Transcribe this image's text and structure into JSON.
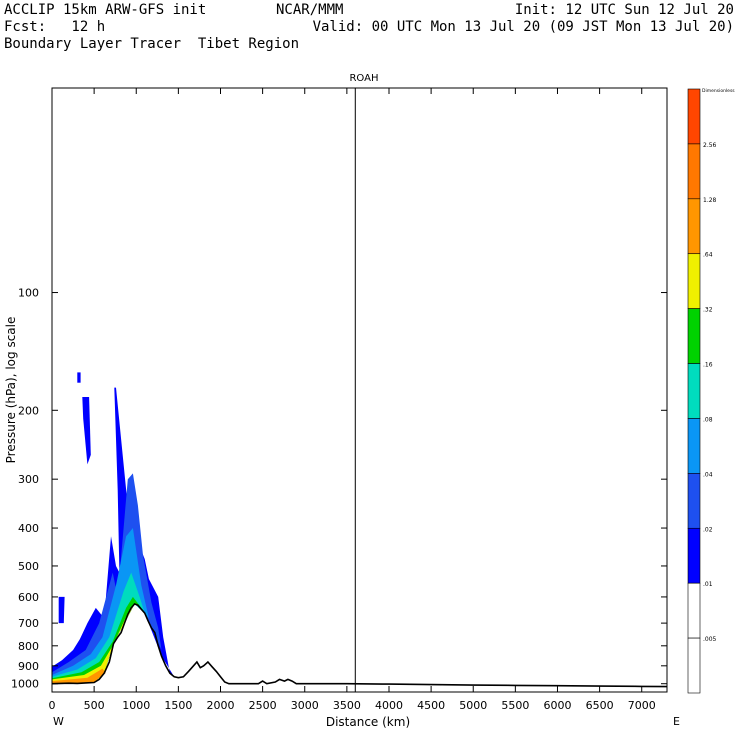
{
  "header": {
    "line1_left": "ACCLIP 15km ARW-GFS init",
    "line1_center": "NCAR/MMM",
    "line1_right": "Init: 12 UTC Sun 12 Jul 20",
    "line2_left": "Fcst:   12 h",
    "line2_right": "Valid: 00 UTC Mon 13 Jul 20 (09 JST Mon 13 Jul 20)",
    "line3_left": "Boundary Layer Tracer  Tibet Region"
  },
  "chart_data": {
    "type": "heatmap",
    "title": "ROAH",
    "xlabel": "Distance (km)",
    "ylabel": "Pressure (hPa), log scale",
    "x_ticks": [
      "0",
      "500",
      "1000",
      "1500",
      "2000",
      "2500",
      "3000",
      "3500",
      "4000",
      "4500",
      "5000",
      "5500",
      "6000",
      "6500",
      "7000"
    ],
    "x_tick_values": [
      0,
      500,
      1000,
      1500,
      2000,
      2500,
      3000,
      3500,
      4000,
      4500,
      5000,
      5500,
      6000,
      6500,
      7000
    ],
    "y_ticks": [
      "100",
      "200",
      "300",
      "400",
      "500",
      "600",
      "700",
      "800",
      "900",
      "1000"
    ],
    "y_tick_values": [
      100,
      200,
      300,
      400,
      500,
      600,
      700,
      800,
      900,
      1000
    ],
    "xlim": [
      0,
      7300
    ],
    "ylim": [
      1050,
      30
    ],
    "y_scale": "log",
    "left_end_label": "W",
    "right_end_label": "E",
    "marker_line_x_km": 3600,
    "colorbar": {
      "title": "Dimensionless",
      "labels": [
        ".005",
        ".01",
        ".02",
        ".04",
        ".08",
        ".16",
        ".32",
        ".64",
        "1.28",
        "2.56"
      ],
      "colors": [
        "#ffffff",
        "#ffffff",
        "#0000ff",
        "#1e50f0",
        "#0a96f5",
        "#00dcbe",
        "#00d200",
        "#f0f000",
        "#ff9600",
        "#ff7800",
        "#ff4600"
      ]
    },
    "terrain": [
      [
        0,
        1000
      ],
      [
        100,
        998
      ],
      [
        200,
        997
      ],
      [
        300,
        998
      ],
      [
        400,
        995
      ],
      [
        500,
        993
      ],
      [
        560,
        975
      ],
      [
        620,
        940
      ],
      [
        680,
        880
      ],
      [
        730,
        790
      ],
      [
        780,
        760
      ],
      [
        820,
        740
      ],
      [
        860,
        700
      ],
      [
        900,
        665
      ],
      [
        940,
        640
      ],
      [
        980,
        625
      ],
      [
        1020,
        630
      ],
      [
        1060,
        645
      ],
      [
        1100,
        660
      ],
      [
        1140,
        690
      ],
      [
        1180,
        720
      ],
      [
        1220,
        740
      ],
      [
        1260,
        800
      ],
      [
        1300,
        850
      ],
      [
        1350,
        900
      ],
      [
        1400,
        940
      ],
      [
        1450,
        960
      ],
      [
        1500,
        965
      ],
      [
        1560,
        960
      ],
      [
        1620,
        930
      ],
      [
        1680,
        900
      ],
      [
        1720,
        880
      ],
      [
        1760,
        910
      ],
      [
        1800,
        900
      ],
      [
        1850,
        880
      ],
      [
        1900,
        905
      ],
      [
        1950,
        930
      ],
      [
        2000,
        960
      ],
      [
        2050,
        990
      ],
      [
        2100,
        1000
      ],
      [
        2300,
        1000
      ],
      [
        2450,
        1000
      ],
      [
        2500,
        985
      ],
      [
        2550,
        1000
      ],
      [
        2650,
        990
      ],
      [
        2700,
        975
      ],
      [
        2760,
        985
      ],
      [
        2800,
        975
      ],
      [
        2850,
        985
      ],
      [
        2900,
        1000
      ],
      [
        3500,
        1000
      ],
      [
        4000,
        1002
      ],
      [
        4500,
        1005
      ],
      [
        5000,
        1008
      ],
      [
        5500,
        1010
      ],
      [
        6000,
        1012
      ],
      [
        6500,
        1014
      ],
      [
        7000,
        1016
      ],
      [
        7300,
        1017
      ]
    ],
    "tracer_regions": [
      {
        "level": ".01-.02",
        "color": "#0000ff",
        "polygon": [
          [
            0,
            905
          ],
          [
            120,
            870
          ],
          [
            250,
            820
          ],
          [
            330,
            770
          ],
          [
            420,
            700
          ],
          [
            520,
            640
          ],
          [
            620,
            680
          ],
          [
            700,
            420
          ],
          [
            760,
            500
          ],
          [
            800,
            520
          ],
          [
            780,
            320
          ],
          [
            740,
            175
          ],
          [
            760,
            175
          ],
          [
            860,
            290
          ],
          [
            940,
            430
          ],
          [
            1030,
            440
          ],
          [
            1100,
            480
          ],
          [
            1150,
            540
          ],
          [
            1260,
            600
          ],
          [
            1320,
            760
          ],
          [
            1400,
            940
          ],
          [
            1450,
            960
          ],
          [
            1300,
            850
          ],
          [
            1100,
            660
          ],
          [
            980,
            625
          ],
          [
            860,
            700
          ],
          [
            730,
            790
          ],
          [
            620,
            940
          ],
          [
            500,
            993
          ],
          [
            300,
            998
          ],
          [
            0,
            1000
          ]
        ]
      },
      {
        "level": ".01-.02",
        "color": "#0000ff",
        "polygon": [
          [
            360,
            185
          ],
          [
            440,
            185
          ],
          [
            460,
            260
          ],
          [
            420,
            275
          ],
          [
            370,
            210
          ]
        ]
      },
      {
        "level": ".01-.02",
        "color": "#0000ff",
        "polygon": [
          [
            300,
            160
          ],
          [
            340,
            160
          ],
          [
            340,
            170
          ],
          [
            300,
            170
          ]
        ]
      },
      {
        "level": ".01-.02",
        "color": "#0000ff",
        "polygon": [
          [
            80,
            600
          ],
          [
            150,
            600
          ],
          [
            140,
            700
          ],
          [
            80,
            700
          ]
        ]
      },
      {
        "level": ".02-.04",
        "color": "#1e50f0",
        "polygon": [
          [
            0,
            935
          ],
          [
            200,
            880
          ],
          [
            400,
            820
          ],
          [
            560,
            700
          ],
          [
            720,
            520
          ],
          [
            780,
            600
          ],
          [
            900,
            300
          ],
          [
            960,
            290
          ],
          [
            1020,
            350
          ],
          [
            1080,
            470
          ],
          [
            1180,
            620
          ],
          [
            1260,
            720
          ],
          [
            1300,
            820
          ],
          [
            1100,
            660
          ],
          [
            980,
            625
          ],
          [
            860,
            700
          ],
          [
            730,
            790
          ],
          [
            620,
            940
          ],
          [
            500,
            993
          ],
          [
            300,
            998
          ],
          [
            0,
            1000
          ]
        ]
      },
      {
        "level": ".04-.08",
        "color": "#0a96f5",
        "polygon": [
          [
            0,
            950
          ],
          [
            250,
            900
          ],
          [
            460,
            840
          ],
          [
            600,
            760
          ],
          [
            760,
            560
          ],
          [
            880,
            420
          ],
          [
            960,
            400
          ],
          [
            1060,
            560
          ],
          [
            1150,
            680
          ],
          [
            1100,
            660
          ],
          [
            980,
            625
          ],
          [
            860,
            700
          ],
          [
            730,
            790
          ],
          [
            620,
            940
          ],
          [
            500,
            993
          ],
          [
            300,
            998
          ],
          [
            0,
            1000
          ]
        ]
      },
      {
        "level": ".08-.16",
        "color": "#00dcbe",
        "polygon": [
          [
            0,
            960
          ],
          [
            300,
            920
          ],
          [
            520,
            860
          ],
          [
            680,
            760
          ],
          [
            850,
            580
          ],
          [
            940,
            520
          ],
          [
            1040,
            600
          ],
          [
            1100,
            660
          ],
          [
            980,
            625
          ],
          [
            860,
            700
          ],
          [
            730,
            790
          ],
          [
            620,
            940
          ],
          [
            500,
            993
          ],
          [
            300,
            998
          ],
          [
            0,
            1000
          ]
        ]
      },
      {
        "level": ".16-.32",
        "color": "#00d200",
        "polygon": [
          [
            0,
            968
          ],
          [
            350,
            935
          ],
          [
            560,
            880
          ],
          [
            720,
            780
          ],
          [
            880,
            640
          ],
          [
            960,
            600
          ],
          [
            1060,
            640
          ],
          [
            980,
            625
          ],
          [
            860,
            700
          ],
          [
            730,
            790
          ],
          [
            620,
            940
          ],
          [
            500,
            993
          ],
          [
            300,
            998
          ],
          [
            0,
            1000
          ]
        ]
      },
      {
        "level": ".32-.64",
        "color": "#f0f000",
        "polygon": [
          [
            0,
            975
          ],
          [
            380,
            950
          ],
          [
            580,
            900
          ],
          [
            720,
            800
          ],
          [
            900,
            660
          ],
          [
            980,
            625
          ],
          [
            860,
            700
          ],
          [
            730,
            790
          ],
          [
            620,
            940
          ],
          [
            500,
            993
          ],
          [
            300,
            998
          ],
          [
            0,
            1000
          ]
        ]
      },
      {
        "level": ".64-1.28",
        "color": "#ff9600",
        "polygon": [
          [
            0,
            985
          ],
          [
            420,
            965
          ],
          [
            600,
            915
          ],
          [
            640,
            940
          ],
          [
            620,
            940
          ],
          [
            500,
            993
          ],
          [
            300,
            998
          ],
          [
            0,
            1000
          ]
        ]
      }
    ]
  }
}
